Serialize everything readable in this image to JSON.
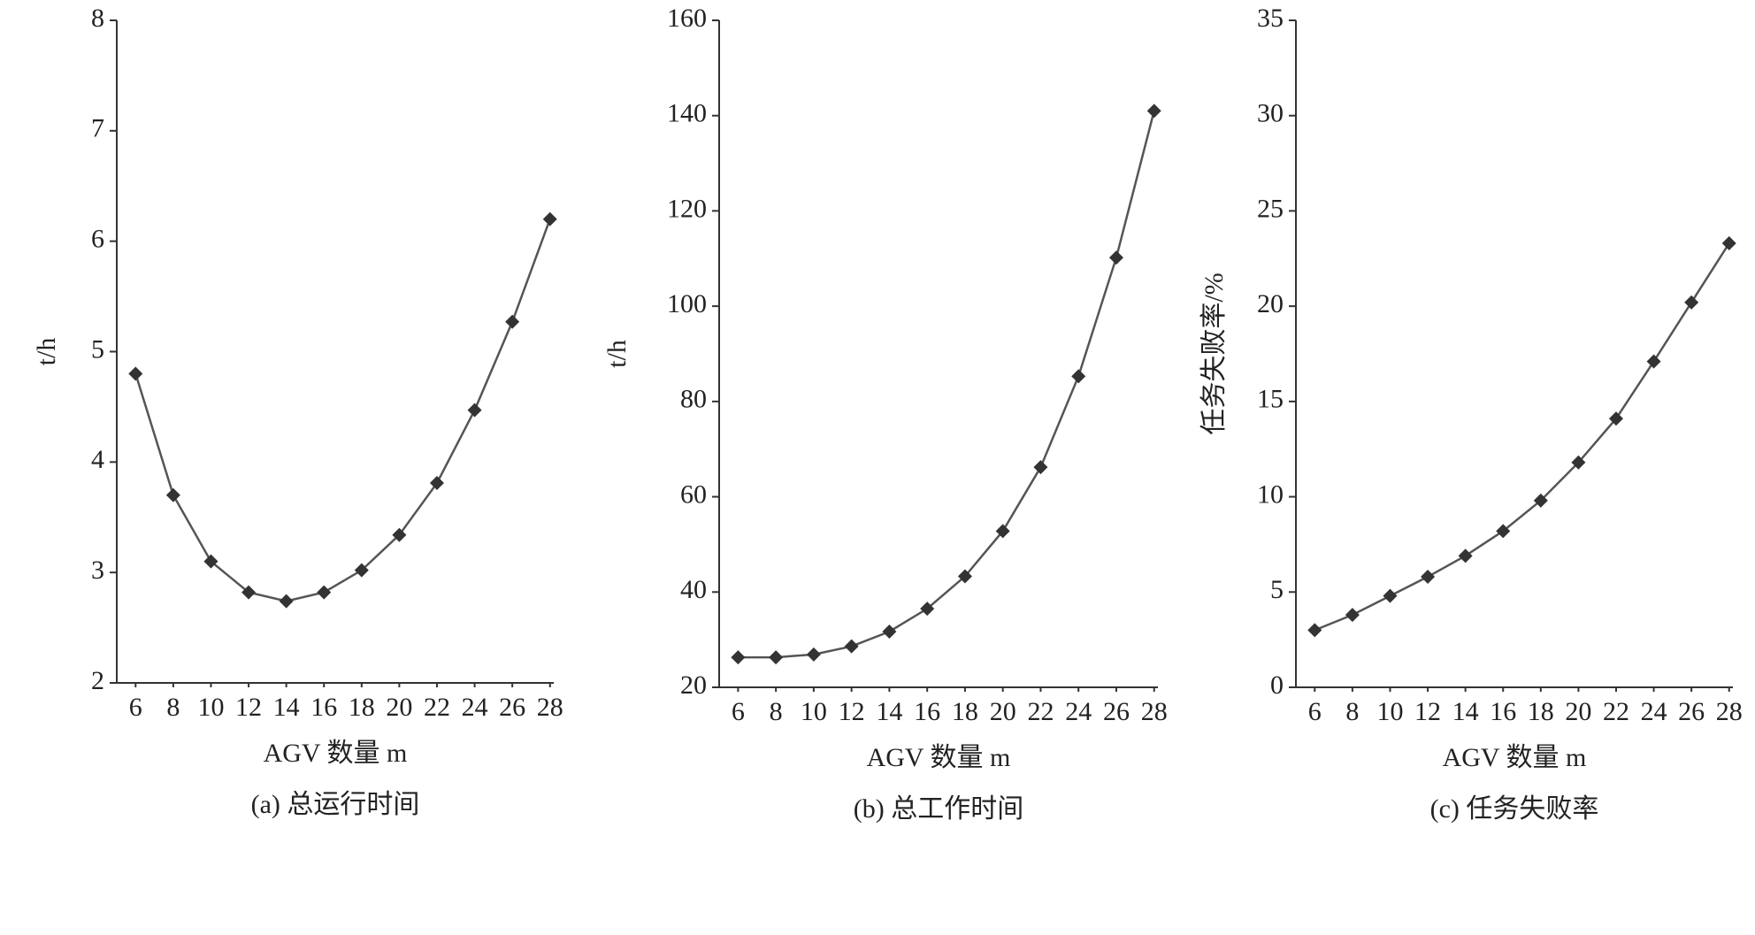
{
  "chart_data": [
    {
      "type": "line",
      "xlabel": "AGV 数量 m",
      "ylabel": "t/h",
      "caption": "(a) 总运行时间",
      "x": [
        6,
        8,
        10,
        12,
        14,
        16,
        18,
        20,
        22,
        24,
        26,
        28
      ],
      "values": [
        4.8,
        3.7,
        3.1,
        2.82,
        2.74,
        2.82,
        3.02,
        3.34,
        3.81,
        4.47,
        5.27,
        6.2
      ],
      "xlim": [
        5,
        28.2
      ],
      "xticks": [
        6,
        8,
        10,
        12,
        14,
        16,
        18,
        20,
        22,
        24,
        26,
        28
      ],
      "ylim": [
        2,
        8
      ],
      "yticks": [
        2,
        3,
        4,
        5,
        6,
        7,
        8
      ],
      "color": "#555555"
    },
    {
      "type": "line",
      "xlabel": "AGV 数量 m",
      "ylabel": "t/h",
      "caption": "(b) 总工作时间",
      "x": [
        6,
        8,
        10,
        12,
        14,
        16,
        18,
        20,
        22,
        24,
        26,
        28
      ],
      "values": [
        26.3,
        26.3,
        26.9,
        28.6,
        31.7,
        36.5,
        43.3,
        52.8,
        66.2,
        85.3,
        110.2,
        141
      ],
      "xlim": [
        5,
        28.2
      ],
      "xticks": [
        6,
        8,
        10,
        12,
        14,
        16,
        18,
        20,
        22,
        24,
        26,
        28
      ],
      "ylim": [
        20,
        160
      ],
      "yticks": [
        20,
        40,
        60,
        80,
        100,
        120,
        140,
        160
      ],
      "color": "#555555"
    },
    {
      "type": "line",
      "xlabel": "AGV 数量 m",
      "ylabel": "任务失败率/%",
      "caption": "(c) 任务失败率",
      "x": [
        6,
        8,
        10,
        12,
        14,
        16,
        18,
        20,
        22,
        24,
        26,
        28
      ],
      "values": [
        3.0,
        3.8,
        4.8,
        5.8,
        6.9,
        8.2,
        9.8,
        11.8,
        14.1,
        17.1,
        20.2,
        23.3
      ],
      "xlim": [
        5,
        28.2
      ],
      "xticks": [
        6,
        8,
        10,
        12,
        14,
        16,
        18,
        20,
        22,
        24,
        26,
        28
      ],
      "ylim": [
        0,
        35
      ],
      "yticks": [
        0,
        5,
        10,
        15,
        20,
        25,
        30,
        35
      ],
      "color": "#555555"
    }
  ]
}
